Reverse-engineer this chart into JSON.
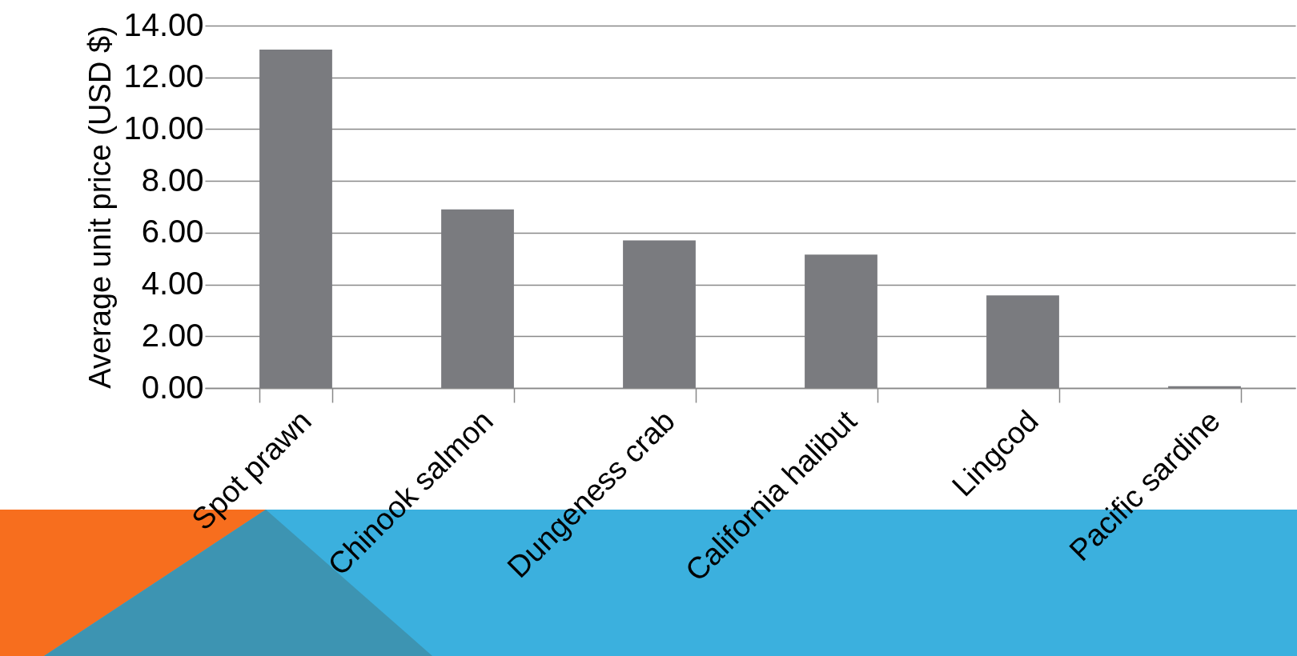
{
  "chart_data": {
    "type": "bar",
    "ylabel": "Average unit price  (USD $)",
    "categories": [
      "Spot prawn",
      "Chinook salmon",
      "Dungeness crab",
      "California halibut",
      "Lingcod",
      "Pacific sardine"
    ],
    "values": [
      13.07,
      6.9,
      5.7,
      5.15,
      3.58,
      0.07
    ],
    "color": "#7a7b7f",
    "ylim": [
      0,
      14
    ],
    "yticks": [
      {
        "value": 0,
        "label": "0.00"
      },
      {
        "value": 2,
        "label": "2.00"
      },
      {
        "value": 4,
        "label": "4.00"
      },
      {
        "value": 6,
        "label": "6.00"
      },
      {
        "value": 8,
        "label": "8.00"
      },
      {
        "value": 10,
        "label": "10.00"
      },
      {
        "value": 12,
        "label": "12.00"
      },
      {
        "value": 14,
        "label": "14.00"
      }
    ],
    "grid": "y"
  }
}
